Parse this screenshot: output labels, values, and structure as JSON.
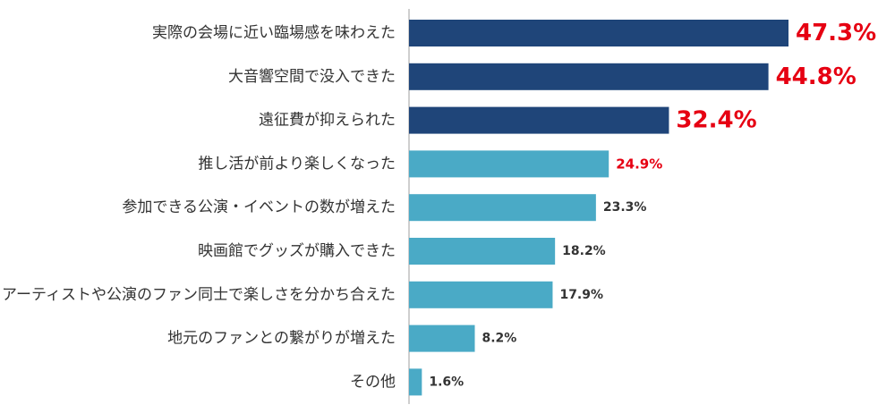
{
  "chart_data": {
    "type": "bar",
    "orientation": "horizontal",
    "title": "",
    "xlabel": "",
    "ylabel": "",
    "xlim": [
      0,
      50
    ],
    "grid": false,
    "categories": [
      "実際の会場に近い臨場感を味わえた",
      "大音響空間で没入できた",
      "遠征費が抑えられた",
      "推し活が前より楽しくなった",
      "参加できる公演・イベントの数が増えた",
      "映画館でグッズが購入できた",
      "アーティストや公演のファン同士で楽しさを分かち合えた",
      "地元のファンとの繋がりが増えた",
      "その他"
    ],
    "values": [
      47.3,
      44.8,
      32.4,
      24.9,
      23.3,
      18.2,
      17.9,
      8.2,
      1.6
    ],
    "value_labels": [
      "47.3%",
      "44.8%",
      "32.4%",
      "24.9%",
      "23.3%",
      "18.2%",
      "17.9%",
      "8.2%",
      "1.6%"
    ],
    "highlight_count": 3,
    "red_label_count": 4,
    "colors": {
      "highlight_bar": "#1f4579",
      "normal_bar": "#4aaac6",
      "highlight_label": "#e60012",
      "normal_label": "#333333",
      "axis_line": "#bfbfbf",
      "category_text": "#333333"
    }
  }
}
